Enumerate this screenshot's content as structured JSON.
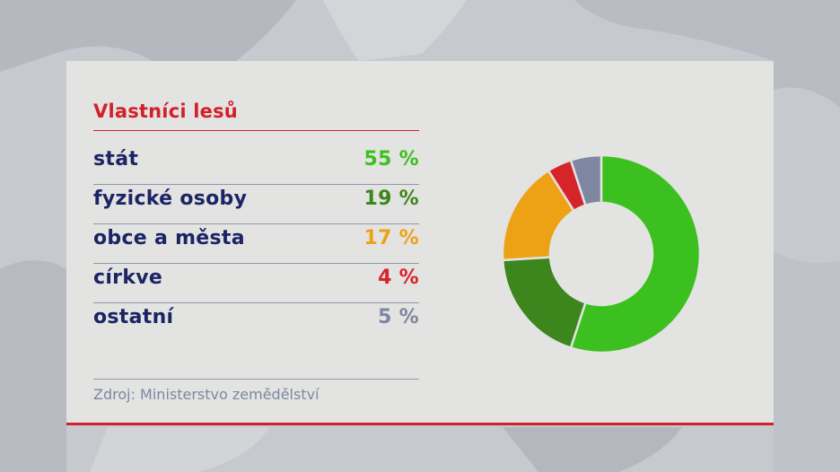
{
  "panel": {
    "title": "Vlastníci lesů",
    "source": "Zdroj: Ministerstvo zemědělství"
  },
  "rows": [
    {
      "label": "stát",
      "value": "55 %",
      "color": "#3cc01f"
    },
    {
      "label": "fyzické osoby",
      "value": "19 %",
      "color": "#3c861d"
    },
    {
      "label": "obce a města",
      "value": "17 %",
      "color": "#eda216"
    },
    {
      "label": "církve",
      "value": "4 %",
      "color": "#d6242b"
    },
    {
      "label": "ostatní",
      "value": "5 %",
      "color": "#7e87a2"
    }
  ],
  "chart_data": {
    "type": "pie",
    "title": "Vlastníci lesů",
    "categories": [
      "stát",
      "fyzické osoby",
      "obce a města",
      "církve",
      "ostatní"
    ],
    "values": [
      55,
      19,
      17,
      4,
      5
    ],
    "colors": [
      "#3cc01f",
      "#3c861d",
      "#eda216",
      "#d6242b",
      "#7e87a2"
    ],
    "donut": true,
    "legend": "left"
  }
}
